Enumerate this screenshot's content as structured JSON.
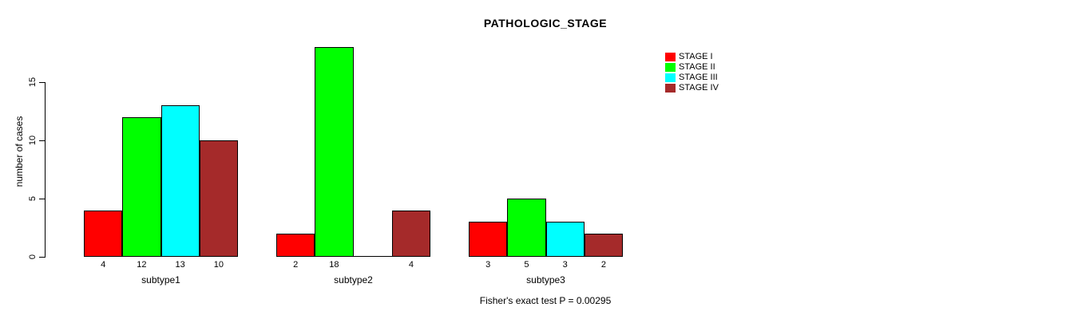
{
  "chart_data": {
    "type": "bar",
    "title": "PATHOLOGIC_STAGE",
    "xlabel": "",
    "ylabel": "number of cases",
    "ylim": [
      0,
      18
    ],
    "yticks": [
      0,
      5,
      10,
      15
    ],
    "grid": false,
    "legend_position": "top-right",
    "categories": [
      "subtype1",
      "subtype2",
      "subtype3"
    ],
    "series": [
      {
        "name": "STAGE I",
        "color": "#ff0000",
        "values": [
          4,
          2,
          3
        ]
      },
      {
        "name": "STAGE II",
        "color": "#00ff00",
        "values": [
          12,
          18,
          5
        ]
      },
      {
        "name": "STAGE III",
        "color": "#00ffff",
        "values": [
          13,
          0,
          3
        ]
      },
      {
        "name": "STAGE IV",
        "color": "#a52a2a",
        "values": [
          10,
          4,
          2
        ]
      }
    ],
    "bar_value_labels": {
      "subtype1": [
        "4",
        "12",
        "13",
        "10"
      ],
      "subtype2": [
        "2",
        "18",
        "",
        "4"
      ],
      "subtype3": [
        "3",
        "5",
        "3",
        "2"
      ]
    },
    "zero_bars_drawn_as_flat_line": true,
    "annotation": "Fisher's exact test P = 0.00295"
  }
}
